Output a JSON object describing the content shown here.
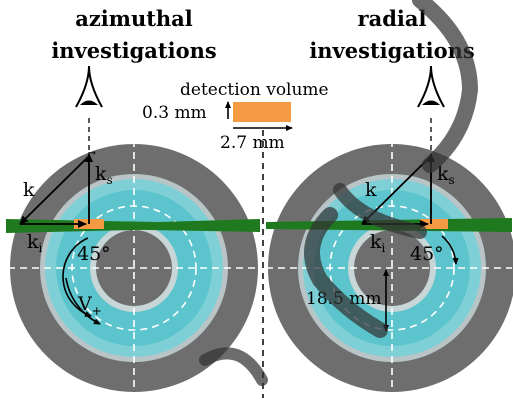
{
  "left_panel": {
    "title_line1": "azimuthal",
    "title_line2": "investigations",
    "angle": "45°",
    "velocity_symbol": "V",
    "velocity_sub": "+",
    "k_scattered": "k",
    "k_scattered_sub": "s",
    "k_incident": "k",
    "k_incident_sub": "i",
    "k_difference": "k"
  },
  "right_panel": {
    "title_line1": "radial",
    "title_line2": "investigations",
    "angle": "45°",
    "radius_label": "18.5 mm",
    "k_scattered": "k",
    "k_scattered_sub": "s",
    "k_incident": "k",
    "k_incident_sub": "i",
    "k_difference": "k"
  },
  "detection_volume": {
    "label": "detection volume",
    "height_label": "0.3 mm",
    "width_label": "2.7 mm"
  },
  "colors": {
    "outer_ring": "#747474",
    "outer_ring_inner": "#8c8c8c",
    "fluid": "#5cc4cc",
    "fluid_light": "#8cd9dd",
    "laser": "#1f7a1f",
    "detection_volume": "#f49a42",
    "watermark": "#333333"
  }
}
